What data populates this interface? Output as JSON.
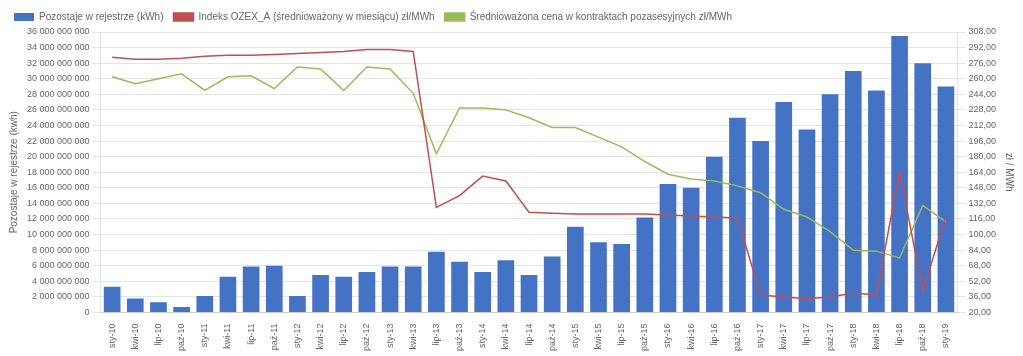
{
  "chart_data": {
    "type": "bar",
    "ylabel": "Pozostaje w rejestrze (kwh)",
    "y2label": "zł / MWh",
    "categories": [
      "sty-10",
      "kwi-10",
      "lip-10",
      "paź-10",
      "sty-11",
      "kwi-11",
      "lip-11",
      "paź-11",
      "sty-12",
      "kwi-12",
      "lip-12",
      "paź-12",
      "sty-13",
      "kwi-13",
      "lip-13",
      "paź-13",
      "sty-14",
      "kwi-14",
      "lip-14",
      "paź-14",
      "sty-15",
      "kwi-15",
      "lip-15",
      "paź-15",
      "sty-16",
      "kwi-16",
      "lip-16",
      "paź-16",
      "sty-17",
      "kwi-17",
      "lip-17",
      "paź-17",
      "sty-18",
      "kwi-18",
      "lip-18",
      "paź-18",
      "sty-19"
    ],
    "series": [
      {
        "name": "Pozostaje w rejestrze (kWh)",
        "type": "bar",
        "color": "#4472C4",
        "values": [
          3300000000,
          1800000000,
          1300000000,
          700000000,
          2100000000,
          4600000000,
          5900000000,
          6000000000,
          2100000000,
          4800000000,
          4600000000,
          5200000000,
          5900000000,
          5900000000,
          7800000000,
          6500000000,
          5200000000,
          6700000000,
          4800000000,
          7200000000,
          11000000000,
          9000000000,
          8800000000,
          12200000000,
          16500000000,
          16000000000,
          20000000000,
          25000000000,
          22000000000,
          27000000000,
          23500000000,
          28000000000,
          31000000000,
          28500000000,
          35500000000,
          32000000000,
          29000000000
        ]
      },
      {
        "name": "Indeks OZEX_A (średnioważony w miesiącu) zł/MWh",
        "type": "line",
        "axis": "y2",
        "color": "#C0504D",
        "values": [
          282,
          280,
          280,
          281,
          283,
          284,
          284,
          285,
          286,
          287,
          288,
          290,
          290,
          288,
          128,
          140,
          160,
          155,
          123,
          122,
          121,
          121,
          121,
          121,
          120,
          119,
          118,
          117,
          38,
          36,
          34,
          36,
          40,
          38,
          165,
          42,
          118
        ]
      },
      {
        "name": "Średnioważona cena w kontraktach pozasesyjnych zł/MWh",
        "type": "line",
        "axis": "y2",
        "color": "#9BBB59",
        "values": [
          262,
          255,
          260,
          265,
          248,
          262,
          263,
          250,
          272,
          270,
          248,
          272,
          270,
          245,
          183,
          230,
          230,
          228,
          220,
          210,
          210,
          200,
          190,
          175,
          162,
          157,
          155,
          150,
          143,
          126,
          118,
          103,
          84,
          83,
          76,
          130,
          113
        ]
      }
    ],
    "ylim": [
      0,
      36000000000
    ],
    "yticks": [
      0,
      {
        "value": 2000000000,
        "label": "2 000 000 000"
      },
      {
        "value": 4000000000,
        "label": "4 000 000 000"
      },
      {
        "value": 6000000000,
        "label": "6 000 000 000"
      },
      {
        "value": 8000000000,
        "label": "8 000 000 000"
      },
      {
        "value": 10000000000,
        "label": "10 000 000 000"
      },
      {
        "value": 12000000000,
        "label": "12 000 000 000"
      },
      {
        "value": 14000000000,
        "label": "14 000 000 000"
      },
      {
        "value": 16000000000,
        "label": "16 000 000 000"
      },
      {
        "value": 18000000000,
        "label": "18 000 000 000"
      },
      {
        "value": 20000000000,
        "label": "20 000 000 000"
      },
      {
        "value": 22000000000,
        "label": "22 000 000 000"
      },
      {
        "value": 24000000000,
        "label": "24 000 000 000"
      },
      {
        "value": 26000000000,
        "label": "26 000 000 000"
      },
      {
        "value": 28000000000,
        "label": "28 000 000 000"
      },
      {
        "value": 30000000000,
        "label": "30 000 000 000"
      },
      {
        "value": 32000000000,
        "label": "32 000 000 000"
      },
      {
        "value": 34000000000,
        "label": "34 000 000 000"
      },
      {
        "value": 36000000000,
        "label": "36 000 000 000"
      }
    ],
    "y2lim": [
      20,
      308
    ],
    "y2ticks": [
      {
        "value": 20,
        "label": "20,00"
      },
      {
        "value": 36,
        "label": "36,00"
      },
      {
        "value": 52,
        "label": "52,00"
      },
      {
        "value": 68,
        "label": "68,00"
      },
      {
        "value": 84,
        "label": "84,00"
      },
      {
        "value": 100,
        "label": "100,00"
      },
      {
        "value": 116,
        "label": "116,00"
      },
      {
        "value": 132,
        "label": "132,00"
      },
      {
        "value": 148,
        "label": "148,00"
      },
      {
        "value": 164,
        "label": "164,00"
      },
      {
        "value": 180,
        "label": "180,00"
      },
      {
        "value": 196,
        "label": "196,00"
      },
      {
        "value": 212,
        "label": "212,00"
      },
      {
        "value": 228,
        "label": "228,00"
      },
      {
        "value": 244,
        "label": "244,00"
      },
      {
        "value": 260,
        "label": "260,00"
      },
      {
        "value": 276,
        "label": "276,00"
      },
      {
        "value": 292,
        "label": "292,00"
      },
      {
        "value": 308,
        "label": "308,00"
      }
    ],
    "grid": true,
    "legend": "upper left"
  }
}
